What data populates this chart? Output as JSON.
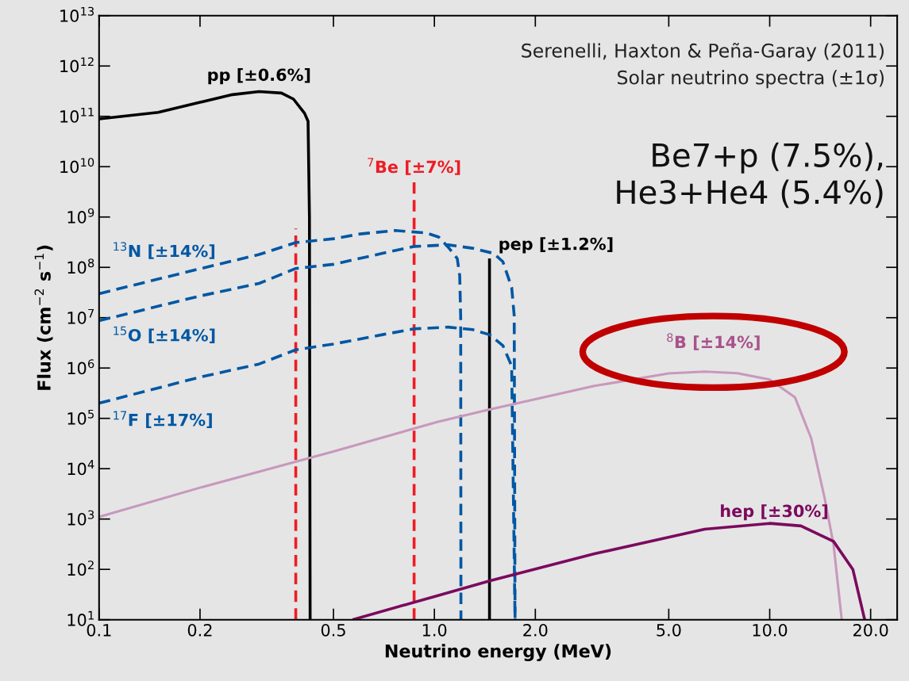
{
  "chart_data": {
    "type": "line",
    "log": "xy",
    "xlabel": "Neutrino energy (MeV)",
    "ylabel": "Flux (cm$^{−2}$ s$^{−1}$)",
    "xlim": [
      0.1,
      24
    ],
    "xticks": [
      {
        "value": 0.1,
        "label": "0.1"
      },
      {
        "value": 0.2,
        "label": "0.2"
      },
      {
        "value": 0.5,
        "label": "0.5"
      },
      {
        "value": 1,
        "label": "1.0"
      },
      {
        "value": 2,
        "label": "2.0"
      },
      {
        "value": 5,
        "label": "5.0"
      },
      {
        "value": 10,
        "label": "10.0"
      },
      {
        "value": 20,
        "label": "20.0"
      }
    ],
    "ylim": [
      10,
      10000000000000.0
    ],
    "yticks": [
      {
        "value": 10,
        "label": "10$^{1}$"
      },
      {
        "value": 100,
        "label": "10$^{2}$"
      },
      {
        "value": 1000,
        "label": "10$^{3}$"
      },
      {
        "value": 10000.0,
        "label": "10$^{4}$"
      },
      {
        "value": 100000.0,
        "label": "10$^{5}$"
      },
      {
        "value": 1000000.0,
        "label": "10$^{6}$"
      },
      {
        "value": 10000000.0,
        "label": "10$^{7}$"
      },
      {
        "value": 100000000.0,
        "label": "10$^{8}$"
      },
      {
        "value": 1000000000.0,
        "label": "10$^{9}$"
      },
      {
        "value": 10000000000.0,
        "label": "10$^{10}$"
      },
      {
        "value": 100000000000.0,
        "label": "10$^{11}$"
      },
      {
        "value": 1000000000000.0,
        "label": "10$^{12}$"
      },
      {
        "value": 10000000000000.0,
        "label": "10$^{13}$"
      }
    ],
    "grid": false,
    "legend": false,
    "marker": "none",
    "series": [
      {
        "name": "pp [±0.6%]",
        "color": "#000000",
        "line_style": "solid",
        "x": [
          0.1,
          0.15,
          0.2,
          0.25,
          0.3,
          0.35,
          0.38,
          0.41,
          0.42,
          0.424,
          0.426
        ],
        "values": [
          89000000000.0,
          120000000000.0,
          190000000000.0,
          270000000000.0,
          310000000000.0,
          290000000000.0,
          220000000000.0,
          115000000000.0,
          80000000000.0,
          1000000000.0,
          10
        ]
      },
      {
        "name": "$^{7}$Be [±7%]",
        "color": "#ee1c24",
        "line_style": "dashed",
        "x": [
          0.386,
          0.386,
          null,
          0.87,
          0.87
        ],
        "values": [
          10,
          590000000.0,
          null,
          10,
          5200000000.0
        ]
      },
      {
        "name": "pep [±1.2%]",
        "color": "#000000",
        "line_style": "solid",
        "x": [
          1.46,
          1.46
        ],
        "values": [
          10,
          150000000.0
        ]
      },
      {
        "name": "$^{13}$N [±14%]",
        "color": "#0057a3",
        "line_style": "dashed",
        "x": [
          0.1,
          0.2,
          0.3,
          0.386,
          0.5,
          0.6,
          0.765,
          0.95,
          1.03,
          1.1,
          1.17,
          1.19,
          1.198,
          1.2
        ],
        "values": [
          30000000.0,
          94000000.0,
          180000000.0,
          310000000.0,
          370000000.0,
          460000000.0,
          540000000.0,
          480000000.0,
          400000000.0,
          250000000.0,
          150000000.0,
          68000000.0,
          10000000.0,
          10
        ]
      },
      {
        "name": "$^{15}$O [±14%]",
        "color": "#0057a3",
        "line_style": "dashed",
        "x": [
          0.1,
          0.2,
          0.3,
          0.386,
          0.5,
          0.7,
          0.87,
          1.1,
          1.3,
          1.5,
          1.6,
          1.7,
          1.73,
          1.74
        ],
        "values": [
          8700000.0,
          27000000.0,
          48000000.0,
          95000000.0,
          115000000.0,
          190000000.0,
          260000000.0,
          280000000.0,
          240000000.0,
          190000000.0,
          130000000.0,
          40000000.0,
          11000000.0,
          10
        ]
      },
      {
        "name": "$^{17}$F [±17%]",
        "color": "#0057a3",
        "line_style": "dashed",
        "x": [
          0.1,
          0.2,
          0.3,
          0.386,
          0.5,
          0.7,
          0.87,
          1.1,
          1.3,
          1.46,
          1.6,
          1.7,
          1.74
        ],
        "values": [
          200000.0,
          660000.0,
          1200000.0,
          2300000.0,
          3000000.0,
          4600000.0,
          6000000.0,
          6500000.0,
          5800000.0,
          4600000.0,
          2800000.0,
          1100000.0,
          10
        ]
      },
      {
        "name": "$^{8}$B [±14%]",
        "color": "#c898bc",
        "line_style": "solid",
        "x": [
          0.1,
          0.2,
          0.5,
          1.02,
          1.46,
          3.0,
          5.0,
          6.4,
          8.0,
          10.0,
          11.9,
          13.3,
          14.6,
          15.5,
          16.4
        ],
        "values": [
          1100.0,
          4200.0,
          22000.0,
          85000.0,
          150000.0,
          440000.0,
          780000.0,
          850000.0,
          790000.0,
          590000.0,
          260000.0,
          40000.0,
          2500.0,
          316,
          10
        ]
      },
      {
        "name": "hep [±30%]",
        "color": "#7b0a5e",
        "line_style": "solid",
        "x": [
          0.57,
          1.02,
          1.46,
          3.0,
          6.4,
          10.0,
          12.4,
          15.5,
          17.7,
          19.2
        ],
        "values": [
          10,
          30,
          59,
          204,
          630,
          820,
          730,
          360,
          100,
          10
        ]
      }
    ],
    "annotations": [
      "Serenelli, Haxton & Peña-Garay (2011)",
      "Solar neutrino spectra (±1σ)",
      "Be7+p (7.5%),\nHe3+He4 (5.4%)"
    ]
  }
}
